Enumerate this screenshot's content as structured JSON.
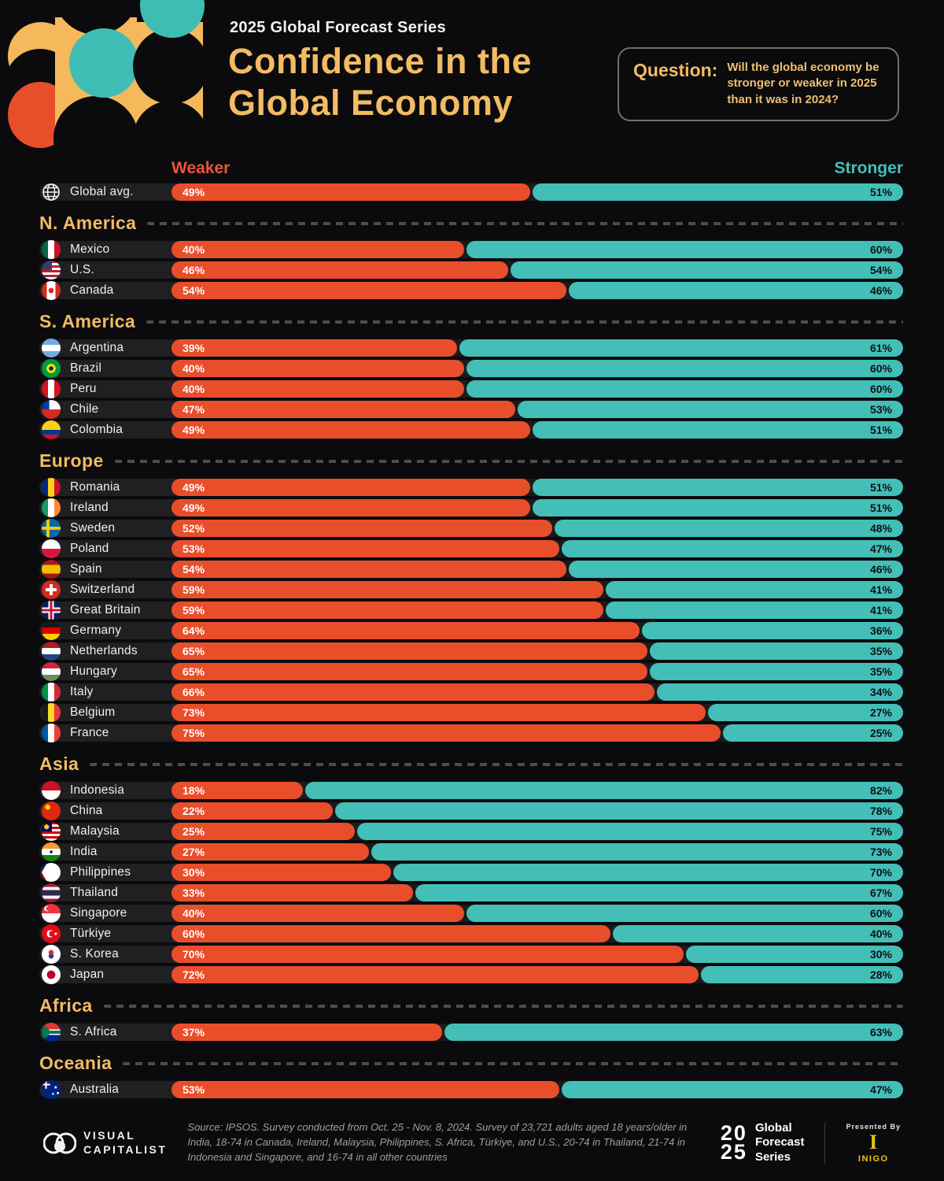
{
  "header": {
    "series_label": "2025 Global Forecast Series",
    "title_line1": "Confidence in the",
    "title_line2": "Global Economy",
    "question_label": "Question:",
    "question_text": "Will the global economy be stronger or weaker in 2025 than it was in 2024?"
  },
  "legend": {
    "weaker": "Weaker",
    "stronger": "Stronger"
  },
  "colors": {
    "background": "#0b0b0d",
    "weaker_bar": "#e94e2b",
    "stronger_bar": "#43bfb7",
    "accent_gold": "#f2bb64",
    "weaker_label": "#e8563a",
    "stronger_label": "#44bfb7"
  },
  "global_row": {
    "label": "Global avg.",
    "icon": "globe-icon",
    "weaker": 49,
    "stronger": 51
  },
  "sections": [
    {
      "name": "N. America",
      "rows": [
        {
          "label": "Mexico",
          "flag": "mexico",
          "weaker": 40,
          "stronger": 60
        },
        {
          "label": "U.S.",
          "flag": "us",
          "weaker": 46,
          "stronger": 54
        },
        {
          "label": "Canada",
          "flag": "canada",
          "weaker": 54,
          "stronger": 46
        }
      ]
    },
    {
      "name": "S. America",
      "rows": [
        {
          "label": "Argentina",
          "flag": "argentina",
          "weaker": 39,
          "stronger": 61
        },
        {
          "label": "Brazil",
          "flag": "brazil",
          "weaker": 40,
          "stronger": 60
        },
        {
          "label": "Peru",
          "flag": "peru",
          "weaker": 40,
          "stronger": 60
        },
        {
          "label": "Chile",
          "flag": "chile",
          "weaker": 47,
          "stronger": 53
        },
        {
          "label": "Colombia",
          "flag": "colombia",
          "weaker": 49,
          "stronger": 51
        }
      ]
    },
    {
      "name": "Europe",
      "rows": [
        {
          "label": "Romania",
          "flag": "romania",
          "weaker": 49,
          "stronger": 51
        },
        {
          "label": "Ireland",
          "flag": "ireland",
          "weaker": 49,
          "stronger": 51
        },
        {
          "label": "Sweden",
          "flag": "sweden",
          "weaker": 52,
          "stronger": 48
        },
        {
          "label": "Poland",
          "flag": "poland",
          "weaker": 53,
          "stronger": 47
        },
        {
          "label": "Spain",
          "flag": "spain",
          "weaker": 54,
          "stronger": 46
        },
        {
          "label": "Switzerland",
          "flag": "switzerland",
          "weaker": 59,
          "stronger": 41
        },
        {
          "label": "Great Britain",
          "flag": "greatbritain",
          "weaker": 59,
          "stronger": 41
        },
        {
          "label": "Germany",
          "flag": "germany",
          "weaker": 64,
          "stronger": 36
        },
        {
          "label": "Netherlands",
          "flag": "netherlands",
          "weaker": 65,
          "stronger": 35
        },
        {
          "label": "Hungary",
          "flag": "hungary",
          "weaker": 65,
          "stronger": 35
        },
        {
          "label": "Italy",
          "flag": "italy",
          "weaker": 66,
          "stronger": 34
        },
        {
          "label": "Belgium",
          "flag": "belgium",
          "weaker": 73,
          "stronger": 27
        },
        {
          "label": "France",
          "flag": "france",
          "weaker": 75,
          "stronger": 25
        }
      ]
    },
    {
      "name": "Asia",
      "rows": [
        {
          "label": "Indonesia",
          "flag": "indonesia",
          "weaker": 18,
          "stronger": 82
        },
        {
          "label": "China",
          "flag": "china",
          "weaker": 22,
          "stronger": 78
        },
        {
          "label": "Malaysia",
          "flag": "malaysia",
          "weaker": 25,
          "stronger": 75
        },
        {
          "label": "India",
          "flag": "india",
          "weaker": 27,
          "stronger": 73
        },
        {
          "label": "Philippines",
          "flag": "philippines",
          "weaker": 30,
          "stronger": 70
        },
        {
          "label": "Thailand",
          "flag": "thailand",
          "weaker": 33,
          "stronger": 67
        },
        {
          "label": "Singapore",
          "flag": "singapore",
          "weaker": 40,
          "stronger": 60
        },
        {
          "label": "Türkiye",
          "flag": "turkiye",
          "weaker": 60,
          "stronger": 40
        },
        {
          "label": "S. Korea",
          "flag": "skorea",
          "weaker": 70,
          "stronger": 30
        },
        {
          "label": "Japan",
          "flag": "japan",
          "weaker": 72,
          "stronger": 28
        }
      ]
    },
    {
      "name": "Africa",
      "rows": [
        {
          "label": "S. Africa",
          "flag": "safrica",
          "weaker": 37,
          "stronger": 63
        }
      ]
    },
    {
      "name": "Oceania",
      "rows": [
        {
          "label": "Australia",
          "flag": "australia",
          "weaker": 53,
          "stronger": 47
        }
      ]
    }
  ],
  "chart_data": {
    "type": "bar",
    "subtype": "stacked-horizontal-percentage",
    "title": "Confidence in the Global Economy",
    "question": "Will the global economy be stronger or weaker in 2025 than it was in 2024?",
    "categories": [
      "Global avg.",
      "Mexico",
      "U.S.",
      "Canada",
      "Argentina",
      "Brazil",
      "Peru",
      "Chile",
      "Colombia",
      "Romania",
      "Ireland",
      "Sweden",
      "Poland",
      "Spain",
      "Switzerland",
      "Great Britain",
      "Germany",
      "Netherlands",
      "Hungary",
      "Italy",
      "Belgium",
      "France",
      "Indonesia",
      "China",
      "Malaysia",
      "India",
      "Philippines",
      "Thailand",
      "Singapore",
      "Türkiye",
      "S. Korea",
      "Japan",
      "S. Africa",
      "Australia"
    ],
    "series": [
      {
        "name": "Weaker",
        "color": "#e94e2b",
        "values": [
          49,
          40,
          46,
          54,
          39,
          40,
          40,
          47,
          49,
          49,
          49,
          52,
          53,
          54,
          59,
          59,
          64,
          65,
          65,
          66,
          73,
          75,
          18,
          22,
          25,
          27,
          30,
          33,
          40,
          60,
          70,
          72,
          37,
          53
        ]
      },
      {
        "name": "Stronger",
        "color": "#43bfb7",
        "values": [
          51,
          60,
          54,
          46,
          61,
          60,
          60,
          53,
          51,
          51,
          51,
          48,
          47,
          46,
          41,
          41,
          36,
          35,
          35,
          34,
          27,
          25,
          82,
          78,
          75,
          73,
          70,
          67,
          60,
          40,
          30,
          28,
          63,
          47
        ]
      }
    ],
    "groups": [
      "Global",
      "N. America",
      "N. America",
      "N. America",
      "S. America",
      "S. America",
      "S. America",
      "S. America",
      "S. America",
      "Europe",
      "Europe",
      "Europe",
      "Europe",
      "Europe",
      "Europe",
      "Europe",
      "Europe",
      "Europe",
      "Europe",
      "Europe",
      "Europe",
      "Europe",
      "Asia",
      "Asia",
      "Asia",
      "Asia",
      "Asia",
      "Asia",
      "Asia",
      "Asia",
      "Asia",
      "Asia",
      "Africa",
      "Oceania"
    ],
    "xlim": [
      0,
      100
    ],
    "value_unit": "%",
    "legend_position": "top",
    "grid": false
  },
  "footer": {
    "vc_logo_text1": "VISUAL",
    "vc_logo_text2": "CAPITALIST",
    "source_text": "Source: IPSOS. Survey conducted from Oct. 25 - Nov. 8, 2024. Survey of 23,721 adults aged 18 years/older in India, 18-74 in Canada, Ireland, Malaysia, Philippines, S. Africa, Türkiye, and U.S., 20-74 in Thailand, 21-74 in Indonesia and Singapore, and 16-74 in all other countries",
    "gfs_num_top": "20",
    "gfs_num_bottom": "25",
    "gfs_words_1": "Global",
    "gfs_words_2": "Forecast",
    "gfs_words_3": "Series",
    "presented_by": "Presented By",
    "inigo_mono": "I",
    "inigo_name": "INIGO"
  }
}
